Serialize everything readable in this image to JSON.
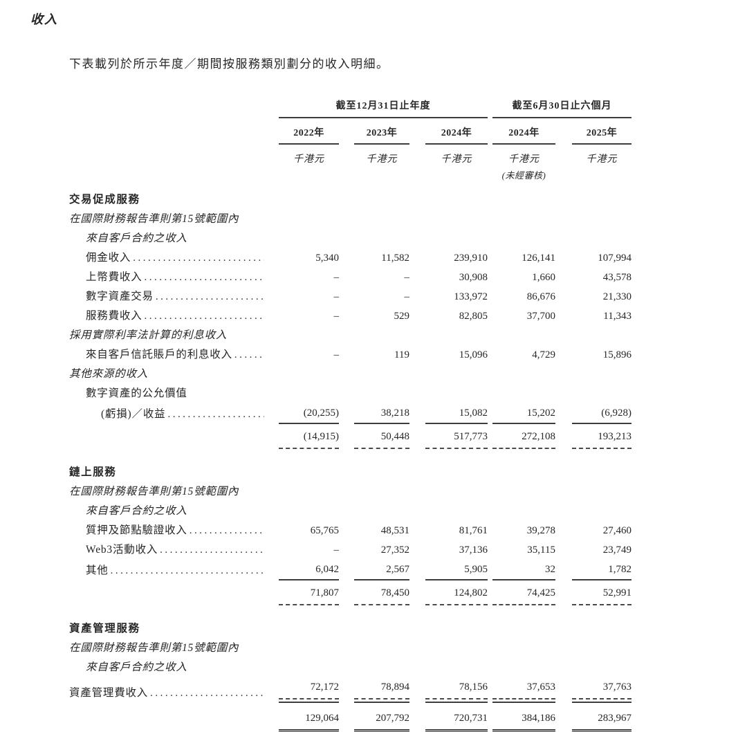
{
  "title": "收入",
  "intro": "下表載列於所示年度／期間按服務類別劃分的收入明細。",
  "table": {
    "header": {
      "group1": "截至12月31日止年度",
      "group2": "截至6月30日止六個月",
      "years": [
        "2022年",
        "2023年",
        "2024年",
        "2024年",
        "2025年"
      ],
      "units": [
        "千港元",
        "千港元",
        "千港元",
        "千港元",
        "千港元"
      ],
      "unaudited_note": "(未經審核)"
    },
    "rows": [
      {
        "type": "section",
        "label": "交易促成服務"
      },
      {
        "type": "subhead",
        "label": "在國際財務報告準則第15號範圍內"
      },
      {
        "type": "subhead",
        "indent": 1,
        "label": "來自客戶合約之收入"
      },
      {
        "type": "item",
        "indent": 1,
        "leader": true,
        "label": "佣金收入",
        "values": [
          "5,340",
          "11,582",
          "239,910",
          "126,141",
          "107,994"
        ]
      },
      {
        "type": "item",
        "indent": 1,
        "leader": true,
        "label": "上幣費收入",
        "values": [
          "–",
          "–",
          "30,908",
          "1,660",
          "43,578"
        ]
      },
      {
        "type": "item",
        "indent": 1,
        "leader": true,
        "label": "數字資產交易",
        "values": [
          "–",
          "–",
          "133,972",
          "86,676",
          "21,330"
        ]
      },
      {
        "type": "item",
        "indent": 1,
        "leader": true,
        "label": "服務費收入",
        "values": [
          "–",
          "529",
          "82,805",
          "37,700",
          "11,343"
        ]
      },
      {
        "type": "subhead",
        "label": "採用實際利率法計算的利息收入"
      },
      {
        "type": "item",
        "indent": 1,
        "leader": true,
        "label": "來自客戶信託賬戶的利息收入",
        "values": [
          "–",
          "119",
          "15,096",
          "4,729",
          "15,896"
        ]
      },
      {
        "type": "subhead",
        "label": "其他來源的收入"
      },
      {
        "type": "plain",
        "indent": 1,
        "label": "數字資產的公允價值"
      },
      {
        "type": "item",
        "indent": 2,
        "leader": true,
        "label": "(虧損)／收益",
        "values": [
          "(20,255)",
          "38,218",
          "15,082",
          "15,202",
          "(6,928)"
        ],
        "rule": "solid"
      },
      {
        "type": "subtotal",
        "label": "",
        "values": [
          "(14,915)",
          "50,448",
          "517,773",
          "272,108",
          "193,213"
        ],
        "rule": "dashed"
      },
      {
        "type": "section",
        "label": "鏈上服務"
      },
      {
        "type": "subhead",
        "label": "在國際財務報告準則第15號範圍內"
      },
      {
        "type": "subhead",
        "indent": 1,
        "label": "來自客戶合約之收入"
      },
      {
        "type": "item",
        "indent": 1,
        "leader": true,
        "label": "質押及節點驗證收入",
        "values": [
          "65,765",
          "48,531",
          "81,761",
          "39,278",
          "27,460"
        ]
      },
      {
        "type": "item",
        "indent": 1,
        "leader": true,
        "label": "Web3活動收入",
        "values": [
          "–",
          "27,352",
          "37,136",
          "35,115",
          "23,749"
        ]
      },
      {
        "type": "item",
        "indent": 1,
        "leader": true,
        "label": "其他",
        "values": [
          "6,042",
          "2,567",
          "5,905",
          "32",
          "1,782"
        ],
        "rule": "solid"
      },
      {
        "type": "subtotal",
        "label": "",
        "values": [
          "71,807",
          "78,450",
          "124,802",
          "74,425",
          "52,991"
        ],
        "rule": "dashed"
      },
      {
        "type": "section",
        "label": "資產管理服務"
      },
      {
        "type": "subhead",
        "label": "在國際財務報告準則第15號範圍內"
      },
      {
        "type": "subhead",
        "indent": 1,
        "label": "來自客戶合約之收入"
      },
      {
        "type": "item",
        "leader": true,
        "label": "資產管理費收入",
        "values": [
          "72,172",
          "78,894",
          "78,156",
          "37,653",
          "37,763"
        ],
        "rule": "dashsolid"
      },
      {
        "type": "total",
        "label": "",
        "values": [
          "129,064",
          "207,792",
          "720,731",
          "384,186",
          "283,967"
        ],
        "rule": "double"
      }
    ]
  }
}
